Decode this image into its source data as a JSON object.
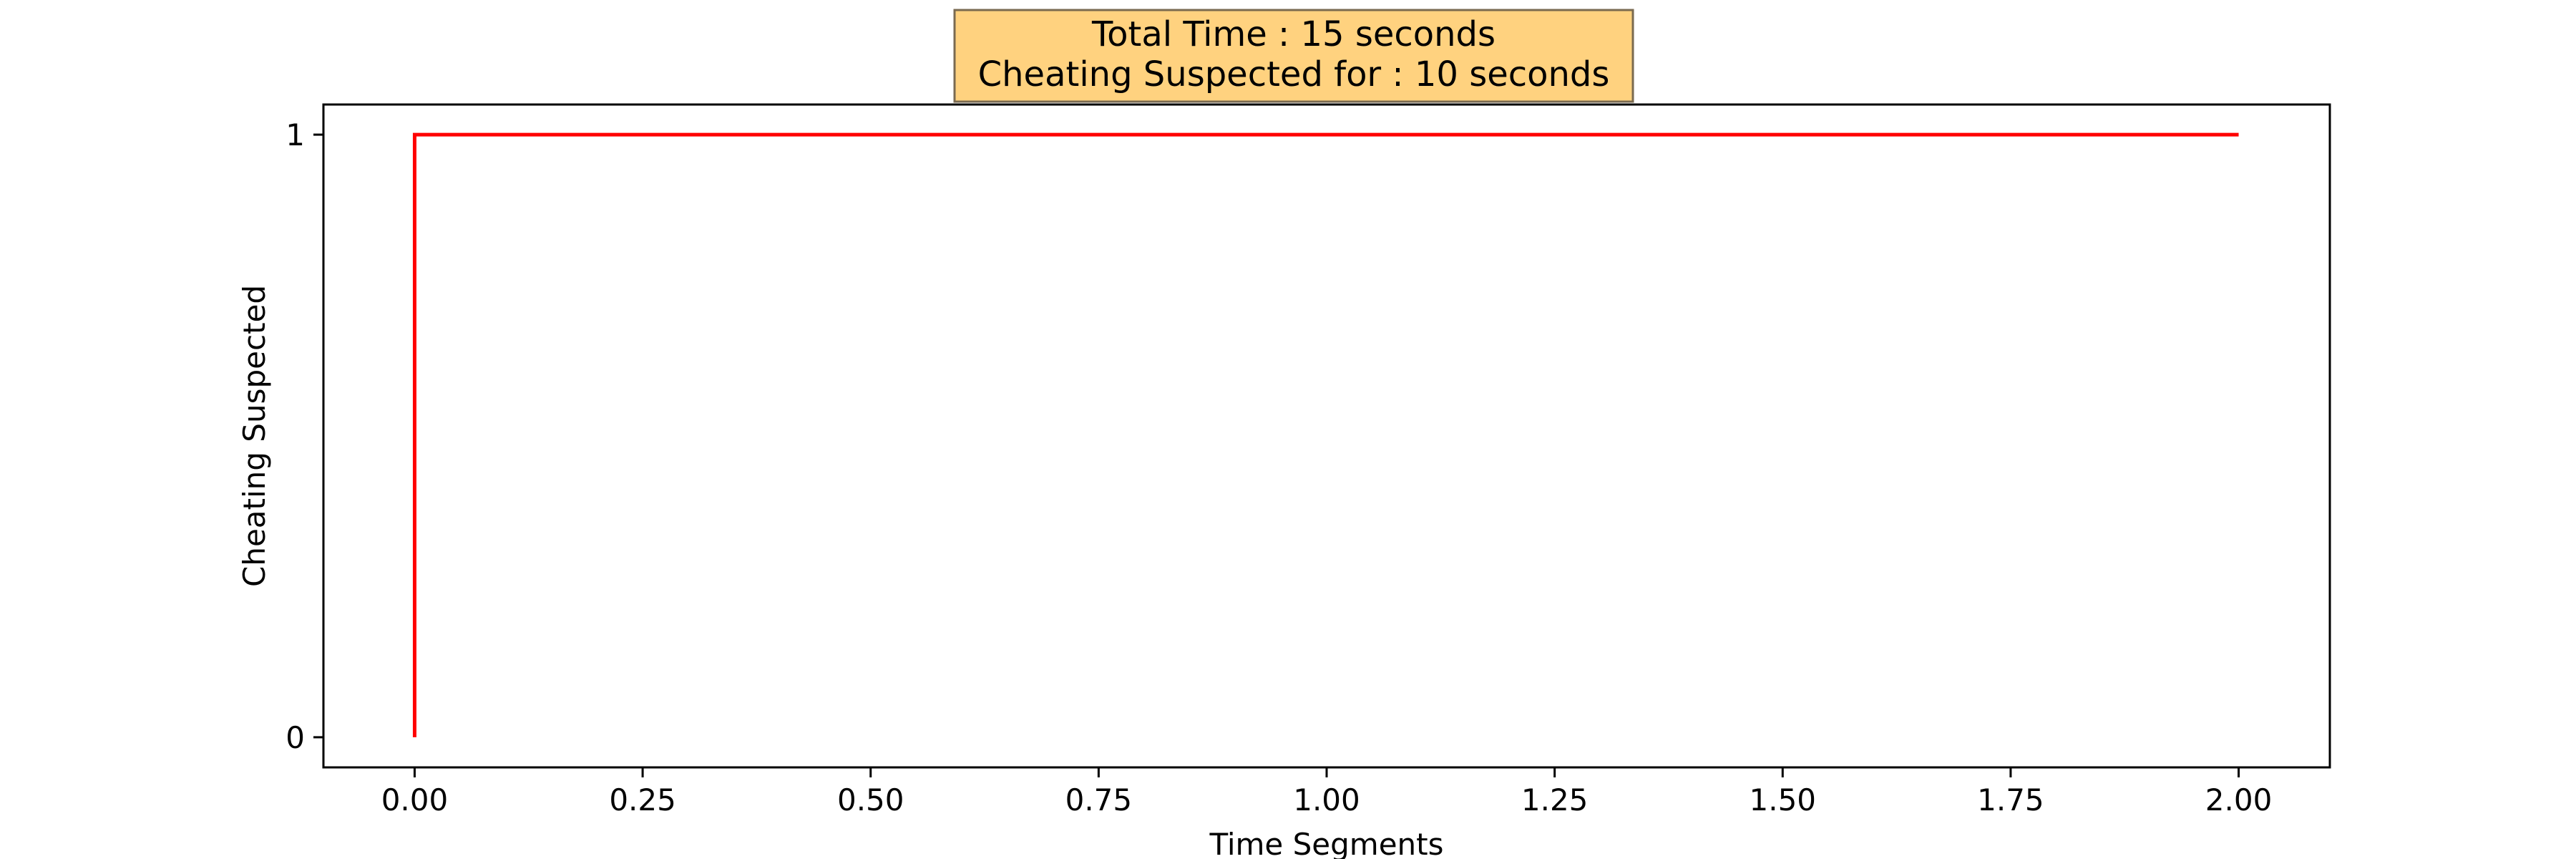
{
  "chart_data": {
    "type": "line",
    "title_lines": [
      "Total Time : 15 seconds",
      "Cheating Suspected for : 10 seconds"
    ],
    "xlabel": "Time Segments",
    "ylabel": "Cheating Suspected",
    "xlim": [
      -0.1,
      2.1
    ],
    "ylim": [
      -0.05,
      1.05
    ],
    "xticks": [
      0,
      0.25,
      0.5,
      0.75,
      1,
      1.25,
      1.5,
      1.75,
      2
    ],
    "xtick_labels": [
      "0.00",
      "0.25",
      "0.50",
      "0.75",
      "1.00",
      "1.25",
      "1.50",
      "1.75",
      "2.00"
    ],
    "yticks": [
      0,
      1
    ],
    "ytick_labels": [
      "0",
      "1"
    ],
    "grid": false,
    "series": [
      {
        "x": [
          0,
          0,
          2
        ],
        "y": [
          0,
          1,
          1
        ],
        "color": "#ff0000"
      }
    ],
    "title_box_color": "#ffd27f"
  }
}
